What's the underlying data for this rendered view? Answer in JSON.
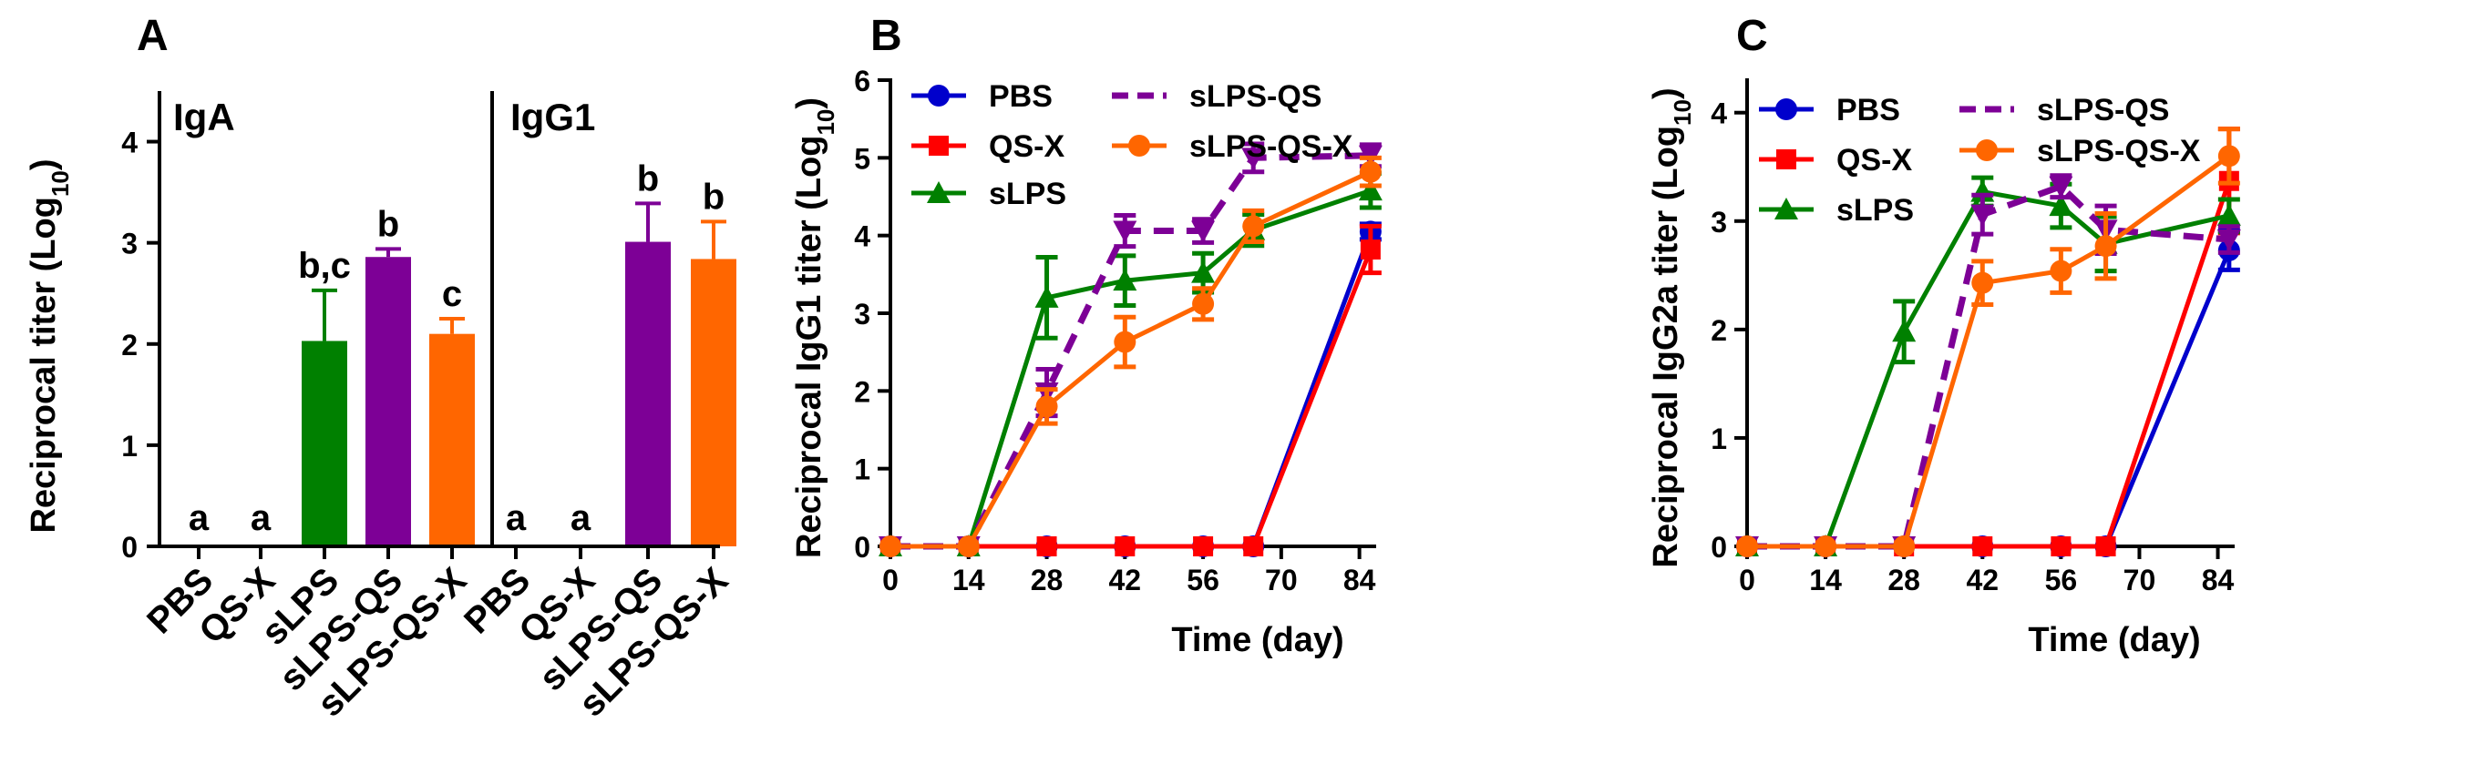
{
  "colors": {
    "PBS": "#0000cc",
    "QS-X": "#ff0000",
    "sLPS": "#008000",
    "sLPS-QS": "#7d0096",
    "sLPS-QS-X": "#ff6600"
  },
  "chart_data": [
    {
      "id": "A",
      "panel_label": "A",
      "type": "bar",
      "ylabel_prefix": "Reciprocal titer (Log",
      "ylabel_sub": "10",
      "ylabel_suffix": ")",
      "ylim": [
        0,
        4.5
      ],
      "yticks": [
        "0",
        "1",
        "2",
        "3",
        "4"
      ],
      "groups": [
        {
          "name": "IgA",
          "categories": [
            "PBS",
            "QS-X",
            "sLPS",
            "sLPS-QS",
            "sLPS-QS-X"
          ],
          "values": [
            0,
            0,
            2.03,
            2.86,
            2.1
          ],
          "errors": [
            0,
            0,
            0.5,
            0.08,
            0.15
          ],
          "letters": [
            "a",
            "a",
            "b,c",
            "b",
            "c"
          ]
        },
        {
          "name": "IgG1",
          "categories": [
            "PBS",
            "QS-X",
            "sLPS-QS",
            "sLPS-QS-X"
          ],
          "values": [
            0,
            0,
            3.01,
            2.84
          ],
          "errors": [
            0,
            0,
            0.38,
            0.37
          ],
          "letters": [
            "a",
            "a",
            "b",
            "b"
          ]
        }
      ]
    },
    {
      "id": "B",
      "panel_label": "B",
      "type": "line",
      "ylabel_prefix": "Reciprocal IgG1 titer (Log",
      "ylabel_sub": "10",
      "ylabel_suffix": ")",
      "xlabel": "Time (day)",
      "xlim": [
        0,
        87
      ],
      "ylim": [
        0,
        6
      ],
      "xticks": [
        "0",
        "14",
        "28",
        "42",
        "56",
        "70",
        "84"
      ],
      "yticks": [
        "0",
        "1",
        "2",
        "3",
        "4",
        "5",
        "6"
      ],
      "legend": [
        "PBS",
        "QS-X",
        "sLPS",
        "sLPS-QS",
        "sLPS-QS-X"
      ],
      "series": [
        {
          "name": "PBS",
          "marker": "circle",
          "dashed": false,
          "x": [
            0,
            14,
            28,
            42,
            56,
            65,
            86
          ],
          "y": [
            0,
            0,
            0,
            0,
            0,
            0,
            4.05
          ],
          "err": [
            0,
            0,
            0,
            0,
            0,
            0,
            0.1
          ]
        },
        {
          "name": "QS-X",
          "marker": "square",
          "dashed": false,
          "x": [
            0,
            14,
            28,
            42,
            56,
            65,
            86
          ],
          "y": [
            0,
            0,
            0,
            0,
            0,
            0,
            3.82
          ],
          "err": [
            0,
            0,
            0,
            0,
            0,
            0,
            0.3
          ]
        },
        {
          "name": "sLPS",
          "marker": "triangle",
          "dashed": false,
          "x": [
            0,
            14,
            28,
            42,
            56,
            65,
            86
          ],
          "y": [
            0,
            0,
            3.2,
            3.42,
            3.52,
            4.07,
            4.58
          ],
          "err": [
            0,
            0,
            0.52,
            0.32,
            0.25,
            0.2,
            0.22
          ]
        },
        {
          "name": "sLPS-QS",
          "marker": "inv-triangle",
          "dashed": true,
          "x": [
            0,
            14,
            28,
            42,
            56,
            65,
            86
          ],
          "y": [
            0,
            0,
            1.98,
            4.06,
            4.06,
            5.0,
            5.03
          ],
          "err": [
            0,
            0,
            0.3,
            0.2,
            0.15,
            0.18,
            0.14
          ]
        },
        {
          "name": "sLPS-QS-X",
          "marker": "circle",
          "dashed": false,
          "x": [
            0,
            14,
            28,
            42,
            56,
            65,
            86
          ],
          "y": [
            0,
            0,
            1.8,
            2.63,
            3.12,
            4.12,
            4.82
          ],
          "err": [
            0,
            0,
            0.22,
            0.32,
            0.2,
            0.2,
            0.18
          ]
        }
      ]
    },
    {
      "id": "C",
      "panel_label": "C",
      "type": "line",
      "ylabel_prefix": "Reciprocal IgG2a titer (Log",
      "ylabel_sub": "10",
      "ylabel_suffix": ")",
      "xlabel": "Time (day)",
      "xlim": [
        0,
        87
      ],
      "ylim": [
        0,
        4.3
      ],
      "xticks": [
        "0",
        "14",
        "28",
        "42",
        "56",
        "70",
        "84"
      ],
      "yticks": [
        "0",
        "1",
        "2",
        "3",
        "4"
      ],
      "legend": [
        "PBS",
        "QS-X",
        "sLPS",
        "sLPS-QS",
        "sLPS-QS-X"
      ],
      "series": [
        {
          "name": "PBS",
          "marker": "circle",
          "dashed": false,
          "x": [
            0,
            14,
            28,
            42,
            56,
            64,
            86
          ],
          "y": [
            0,
            0,
            0,
            0,
            0,
            0,
            2.73
          ],
          "err": [
            0,
            0,
            0,
            0,
            0,
            0,
            0.18
          ]
        },
        {
          "name": "QS-X",
          "marker": "square",
          "dashed": false,
          "x": [
            0,
            14,
            28,
            42,
            56,
            64,
            86
          ],
          "y": [
            0,
            0,
            0,
            0,
            0,
            0,
            3.37
          ],
          "err": [
            0,
            0,
            0,
            0,
            0,
            0,
            0.48
          ]
        },
        {
          "name": "sLPS",
          "marker": "triangle",
          "dashed": false,
          "x": [
            0,
            14,
            28,
            42,
            56,
            64,
            86
          ],
          "y": [
            0,
            0,
            1.98,
            3.27,
            3.14,
            2.79,
            3.05
          ],
          "err": [
            0,
            0,
            0.28,
            0.13,
            0.2,
            0.25,
            0.15
          ]
        },
        {
          "name": "sLPS-QS",
          "marker": "inv-triangle",
          "dashed": true,
          "x": [
            0,
            14,
            28,
            42,
            56,
            64,
            86
          ],
          "y": [
            0,
            0,
            0,
            3.06,
            3.32,
            2.92,
            2.83
          ],
          "err": [
            0,
            0,
            0,
            0.18,
            0.1,
            0.22,
            0.12
          ]
        },
        {
          "name": "sLPS-QS-X",
          "marker": "circle",
          "dashed": false,
          "x": [
            0,
            14,
            28,
            42,
            56,
            64,
            86
          ],
          "y": [
            0,
            0,
            0,
            2.43,
            2.54,
            2.77,
            3.6
          ],
          "err": [
            0,
            0,
            0,
            0.2,
            0.2,
            0.3,
            0.25
          ]
        }
      ]
    }
  ]
}
